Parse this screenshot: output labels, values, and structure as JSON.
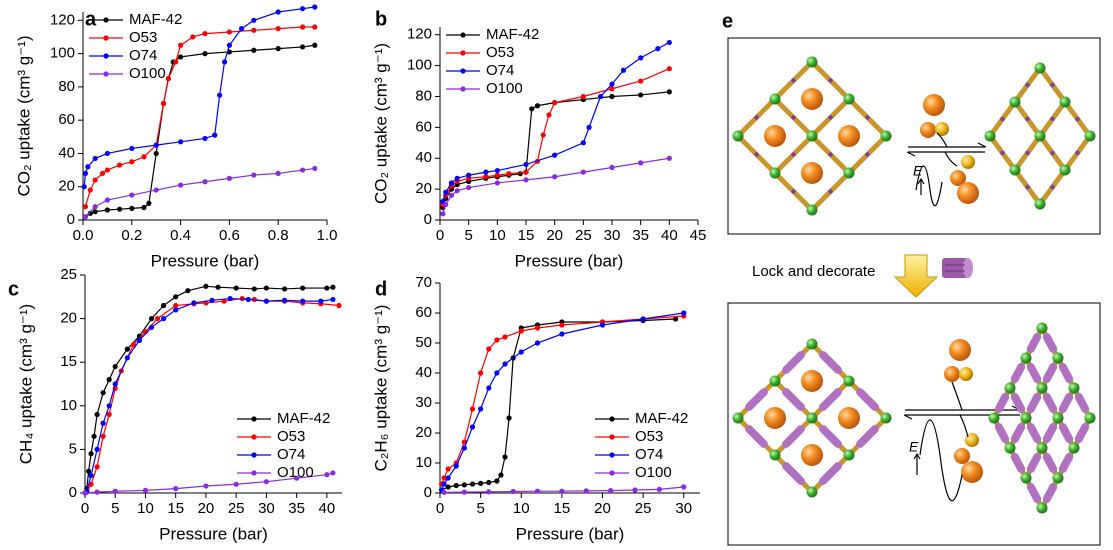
{
  "chart_data": [
    {
      "type": "line",
      "panel": "a",
      "x_label": "Pressure (bar)",
      "y_label": "CO₂ uptake (cm³ g⁻¹)",
      "xlim": [
        0,
        1.0
      ],
      "ylim": [
        0,
        125
      ],
      "xticks": [
        {
          "value": 0,
          "label": "0.0"
        },
        {
          "value": 0.2,
          "label": "0.2"
        },
        {
          "value": 0.4,
          "label": "0.4"
        },
        {
          "value": 0.6,
          "label": "0.6"
        },
        {
          "value": 0.8,
          "label": "0.8"
        },
        {
          "value": 1.0,
          "label": "1.0"
        }
      ],
      "yticks": [
        0,
        20,
        40,
        60,
        80,
        100,
        120
      ],
      "legend": "upper left",
      "series": [
        {
          "name": "MAF-42",
          "color": "#000000",
          "x": [
            0.01,
            0.03,
            0.05,
            0.1,
            0.15,
            0.2,
            0.25,
            0.27,
            0.3,
            0.33,
            0.35,
            0.37,
            0.4,
            0.5,
            0.6,
            0.7,
            0.8,
            0.9,
            0.95
          ],
          "values": [
            2,
            4,
            5,
            6,
            6.5,
            7,
            7.5,
            10,
            40,
            70,
            85,
            95,
            98,
            100,
            101,
            102,
            103,
            104,
            105
          ]
        },
        {
          "name": "O53",
          "color": "#ff0000",
          "x": [
            0.01,
            0.03,
            0.05,
            0.08,
            0.1,
            0.15,
            0.2,
            0.25,
            0.3,
            0.33,
            0.35,
            0.38,
            0.4,
            0.45,
            0.5,
            0.6,
            0.7,
            0.8,
            0.9,
            0.95
          ],
          "values": [
            8,
            18,
            24,
            28,
            30,
            33,
            35,
            38,
            45,
            70,
            85,
            95,
            105,
            110,
            112,
            113,
            114,
            115,
            116,
            116
          ]
        },
        {
          "name": "O74",
          "color": "#0000ff",
          "x": [
            0.005,
            0.01,
            0.02,
            0.05,
            0.1,
            0.2,
            0.3,
            0.4,
            0.5,
            0.54,
            0.56,
            0.58,
            0.6,
            0.65,
            0.7,
            0.8,
            0.9,
            0.95
          ],
          "values": [
            20,
            28,
            32,
            37,
            40,
            43,
            45,
            47,
            49,
            51,
            75,
            95,
            105,
            115,
            120,
            125,
            127,
            128
          ]
        },
        {
          "name": "O100",
          "color": "#8a2be2",
          "x": [
            0.01,
            0.05,
            0.1,
            0.2,
            0.3,
            0.4,
            0.5,
            0.6,
            0.7,
            0.8,
            0.9,
            0.95
          ],
          "values": [
            2,
            8,
            12,
            15,
            18,
            21,
            23,
            25,
            27,
            28,
            30,
            31
          ]
        }
      ]
    },
    {
      "type": "line",
      "panel": "b",
      "x_label": "Pressure (bar)",
      "y_label": "CO₂ uptake (cm³ g⁻¹)",
      "xlim": [
        0,
        45
      ],
      "ylim": [
        0,
        125
      ],
      "xticks": [
        0,
        5,
        10,
        15,
        20,
        25,
        30,
        35,
        40,
        45
      ],
      "yticks": [
        0,
        20,
        40,
        60,
        80,
        100,
        120
      ],
      "legend": "upper left",
      "series": [
        {
          "name": "MAF-42",
          "color": "#000000",
          "x": [
            0.5,
            1,
            2,
            3,
            5,
            8,
            10,
            12,
            14,
            15,
            16,
            17,
            20,
            25,
            30,
            35,
            40
          ],
          "values": [
            8,
            14,
            20,
            23,
            25,
            27,
            28,
            29,
            30,
            31,
            72,
            74,
            76,
            78,
            80,
            81,
            83
          ]
        },
        {
          "name": "O53",
          "color": "#ff0000",
          "x": [
            0.5,
            1,
            2,
            3,
            5,
            8,
            10,
            12,
            15,
            17,
            18,
            19,
            20,
            25,
            30,
            35,
            40
          ],
          "values": [
            10,
            16,
            22,
            25,
            27,
            28,
            29,
            30,
            31,
            38,
            55,
            68,
            76,
            80,
            85,
            90,
            98
          ]
        },
        {
          "name": "O74",
          "color": "#0000ff",
          "x": [
            0.5,
            1,
            2,
            3,
            5,
            8,
            10,
            15,
            20,
            25,
            26,
            28,
            30,
            32,
            35,
            38,
            40
          ],
          "values": [
            12,
            18,
            24,
            27,
            29,
            31,
            32,
            36,
            42,
            50,
            60,
            80,
            88,
            97,
            105,
            111,
            115
          ]
        },
        {
          "name": "O100",
          "color": "#8a2be2",
          "x": [
            0.5,
            1,
            2,
            3,
            5,
            10,
            15,
            20,
            25,
            30,
            35,
            40
          ],
          "values": [
            4,
            10,
            16,
            19,
            21,
            24,
            26,
            28,
            31,
            34,
            37,
            40
          ]
        }
      ]
    },
    {
      "type": "line",
      "panel": "c",
      "x_label": "Pressure (bar)",
      "y_label": "CH₄ uptake (cm³ g⁻¹)",
      "xlim": [
        0,
        42.5
      ],
      "ylim": [
        0,
        25
      ],
      "xticks": [
        0,
        5,
        10,
        15,
        20,
        25,
        30,
        35,
        40
      ],
      "yticks": [
        0,
        5,
        10,
        15,
        20,
        25
      ],
      "legend": "lower right",
      "series": [
        {
          "name": "MAF-42",
          "color": "#000000",
          "x": [
            0.3,
            0.6,
            1,
            1.5,
            2,
            3,
            4,
            5,
            7,
            9,
            11,
            13,
            15,
            17,
            20,
            22,
            25,
            28,
            30,
            33,
            36,
            40,
            41
          ],
          "values": [
            0.5,
            2.5,
            4.5,
            6.5,
            9,
            11.5,
            13,
            14.5,
            16.5,
            18,
            20,
            21.5,
            22.5,
            23.2,
            23.7,
            23.6,
            23.5,
            23.4,
            23.5,
            23.4,
            23.5,
            23.5,
            23.6
          ]
        },
        {
          "name": "O53",
          "color": "#ff0000",
          "x": [
            0.3,
            1,
            2,
            3,
            4,
            5,
            6,
            8,
            10,
            12,
            15,
            18,
            20,
            23,
            26,
            28,
            30,
            33,
            36,
            39,
            42
          ],
          "values": [
            0.1,
            1,
            3,
            6.5,
            9,
            12,
            14,
            17,
            18.5,
            20,
            21.5,
            21.7,
            21.8,
            22,
            22.3,
            22.2,
            22,
            22,
            21.8,
            21.7,
            21.5
          ]
        },
        {
          "name": "O74",
          "color": "#0000ff",
          "x": [
            0.3,
            1,
            2,
            3,
            4,
            5,
            7,
            9,
            11,
            13,
            15,
            18,
            21,
            24,
            27,
            30,
            33,
            36,
            39,
            41
          ],
          "values": [
            0.2,
            2,
            5,
            8,
            10,
            12.5,
            15.5,
            17.5,
            19,
            20,
            21,
            21.8,
            22.1,
            22.3,
            22.2,
            22,
            22.1,
            22,
            22,
            22.2
          ]
        },
        {
          "name": "O100",
          "color": "#8a2be2",
          "x": [
            0,
            2,
            5,
            10,
            15,
            20,
            25,
            30,
            35,
            40,
            41
          ],
          "values": [
            0,
            0.1,
            0.2,
            0.3,
            0.5,
            0.8,
            1,
            1.3,
            1.7,
            2.1,
            2.3
          ]
        }
      ]
    },
    {
      "type": "line",
      "panel": "d",
      "x_label": "Pressure (bar)",
      "y_label": "C₂H₆ uptake (cm³ g⁻¹)",
      "xlim": [
        0,
        32
      ],
      "ylim": [
        0,
        70
      ],
      "xticks": [
        0,
        5,
        10,
        15,
        20,
        25,
        30
      ],
      "yticks": [
        0,
        10,
        20,
        30,
        40,
        50,
        60,
        70
      ],
      "legend": "lower right",
      "series": [
        {
          "name": "MAF-42",
          "color": "#000000",
          "x": [
            0.2,
            1,
            2,
            3,
            4,
            5,
            6,
            7,
            7.5,
            8,
            8.5,
            9,
            10,
            12,
            15,
            20,
            25,
            29
          ],
          "values": [
            1,
            2,
            2.5,
            2.7,
            3,
            3.2,
            3.5,
            4,
            6,
            12,
            25,
            45,
            55,
            56,
            57,
            57,
            57.5,
            58
          ]
        },
        {
          "name": "O53",
          "color": "#ff0000",
          "x": [
            0.2,
            0.5,
            1,
            2,
            3,
            4,
            5,
            6,
            7,
            8,
            10,
            12,
            15,
            20,
            25,
            30
          ],
          "values": [
            3,
            5,
            8,
            10,
            17,
            28,
            40,
            48,
            51,
            52,
            54,
            55,
            56,
            57,
            58,
            59
          ]
        },
        {
          "name": "O74",
          "color": "#0000ff",
          "x": [
            0.2,
            0.5,
            1,
            2,
            3,
            4,
            5,
            6,
            7,
            8,
            10,
            12,
            15,
            20,
            25,
            30
          ],
          "values": [
            1,
            3,
            5,
            9,
            15,
            22,
            28,
            35,
            40,
            43,
            47,
            50,
            53,
            56,
            58,
            60
          ]
        },
        {
          "name": "O100",
          "color": "#8a2be2",
          "x": [
            0.5,
            3,
            6,
            9,
            12,
            15,
            18,
            21,
            24,
            27,
            30
          ],
          "values": [
            0.2,
            0.3,
            0.4,
            0.5,
            0.6,
            0.6,
            0.7,
            0.8,
            1,
            1.2,
            2
          ]
        }
      ]
    }
  ],
  "diagram": {
    "panel": "e",
    "step_label": "Lock and decorate",
    "energy_labels": [
      "E",
      "E"
    ]
  }
}
